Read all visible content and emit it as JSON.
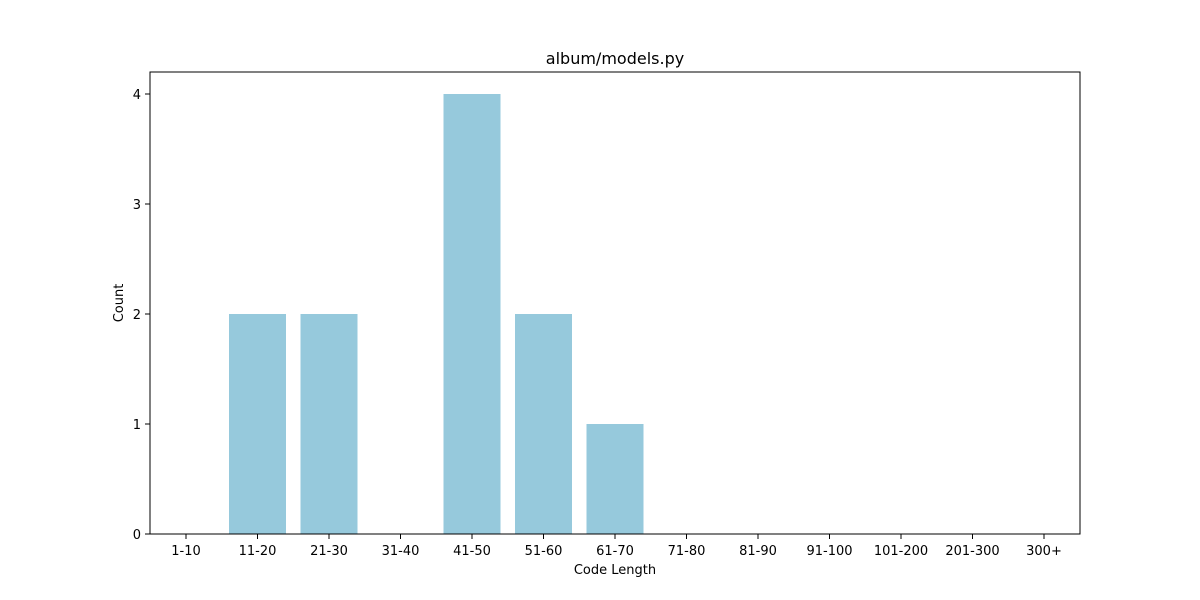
{
  "chart_data": {
    "type": "bar",
    "title": "album/models.py",
    "xlabel": "Code Length",
    "ylabel": "Count",
    "categories": [
      "1-10",
      "11-20",
      "21-30",
      "31-40",
      "41-50",
      "51-60",
      "61-70",
      "71-80",
      "81-90",
      "91-100",
      "101-200",
      "201-300",
      "300+"
    ],
    "values": [
      0,
      2,
      2,
      0,
      4,
      2,
      1,
      0,
      0,
      0,
      0,
      0,
      0
    ],
    "ylim": [
      0,
      4.2
    ],
    "yticks": [
      "0",
      "1",
      "2",
      "3",
      "4"
    ],
    "grid": false,
    "bar_color": "#96c9dc"
  }
}
